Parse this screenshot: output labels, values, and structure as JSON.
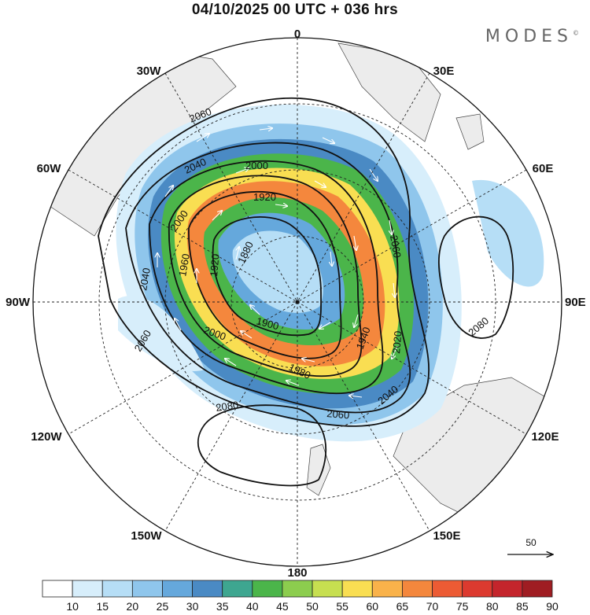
{
  "title": "04/10/2025  00 UTC  + 036 hrs",
  "brand": {
    "name": "MODES",
    "mark": "©"
  },
  "map": {
    "projection": "polar stereographic, Southern Hemisphere",
    "longitude_labels": [
      {
        "text": "0"
      },
      {
        "text": "30E"
      },
      {
        "text": "60E"
      },
      {
        "text": "90E"
      },
      {
        "text": "120E"
      },
      {
        "text": "150E"
      },
      {
        "text": "180"
      },
      {
        "text": "150W"
      },
      {
        "text": "120W"
      },
      {
        "text": "90W"
      },
      {
        "text": "60W"
      },
      {
        "text": "30W"
      }
    ],
    "contour_labels": [
      "2060",
      "2040",
      "2000",
      "1920",
      "2000",
      "1880",
      "1960",
      "1920",
      "2040",
      "2060",
      "2000",
      "1900",
      "1980",
      "2060",
      "1940",
      "2020",
      "2040",
      "2060",
      "2080",
      "2080"
    ],
    "vector_reference": {
      "label": "50"
    }
  },
  "colorbar": {
    "ticks": [
      "10",
      "15",
      "20",
      "25",
      "30",
      "35",
      "40",
      "45",
      "50",
      "55",
      "60",
      "65",
      "70",
      "75",
      "80",
      "85",
      "90"
    ],
    "colors": [
      "#ffffff",
      "#d7eefb",
      "#b6def6",
      "#8fc6ec",
      "#65a8dc",
      "#4a8ac4",
      "#3ea690",
      "#4bb54a",
      "#8ccd4e",
      "#c7df50",
      "#f9de52",
      "#f9b24a",
      "#f4873d",
      "#ec5b34",
      "#dc3a2f",
      "#c4252c",
      "#9f1d22"
    ]
  }
}
